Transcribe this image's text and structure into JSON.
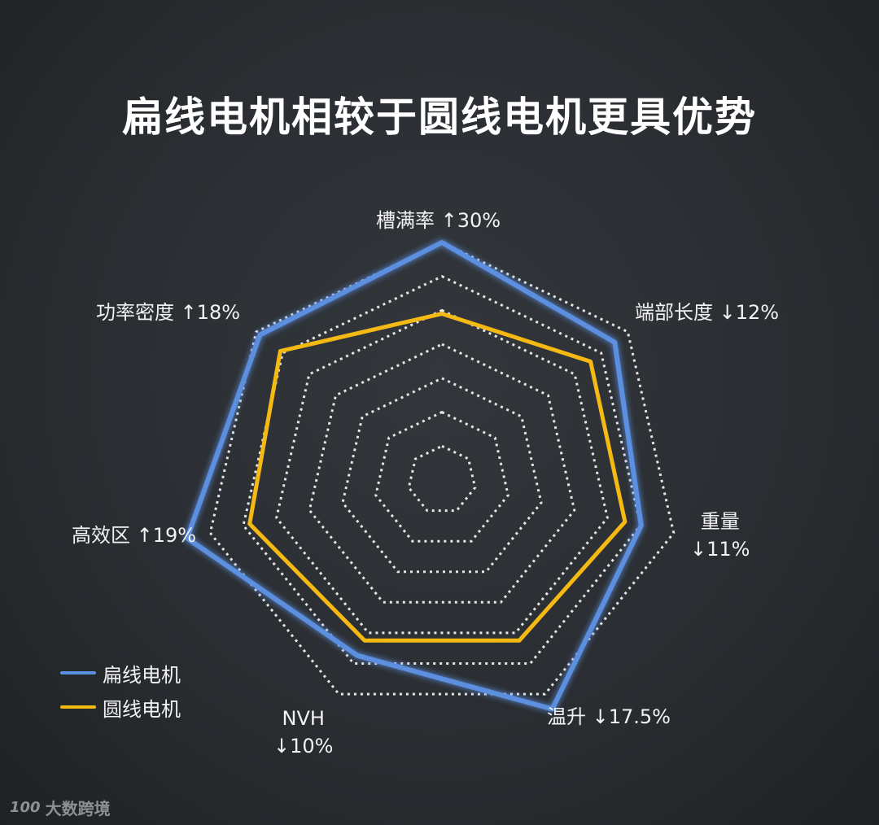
{
  "title": "扁线电机相较于圆线电机更具优势",
  "watermark": {
    "logo": "100",
    "text": "大数跨境"
  },
  "chart_data": {
    "type": "radar",
    "title": "扁线电机相较于圆线电机更具优势",
    "axes": [
      {
        "name": "槽满率",
        "change": "↑30%"
      },
      {
        "name": "端部长度",
        "change": "↓12%"
      },
      {
        "name": "重量",
        "change": "↓11%"
      },
      {
        "name": "温升",
        "change": "↓17.5%"
      },
      {
        "name": "NVH",
        "change": "↓10%"
      },
      {
        "name": "高效区",
        "change": "↑19%"
      },
      {
        "name": "功率密度",
        "change": "↑18%"
      }
    ],
    "grid_levels": 7,
    "series": [
      {
        "name": "扁线电机",
        "color": "#5b8fe0",
        "values": [
          1.0,
          0.93,
          0.86,
          1.07,
          0.82,
          1.1,
          0.98
        ]
      },
      {
        "name": "圆线电机",
        "color": "#f5b914",
        "values": [
          0.7,
          0.8,
          0.79,
          0.75,
          0.75,
          0.83,
          0.87
        ]
      }
    ],
    "legend_position": "bottom-left"
  }
}
